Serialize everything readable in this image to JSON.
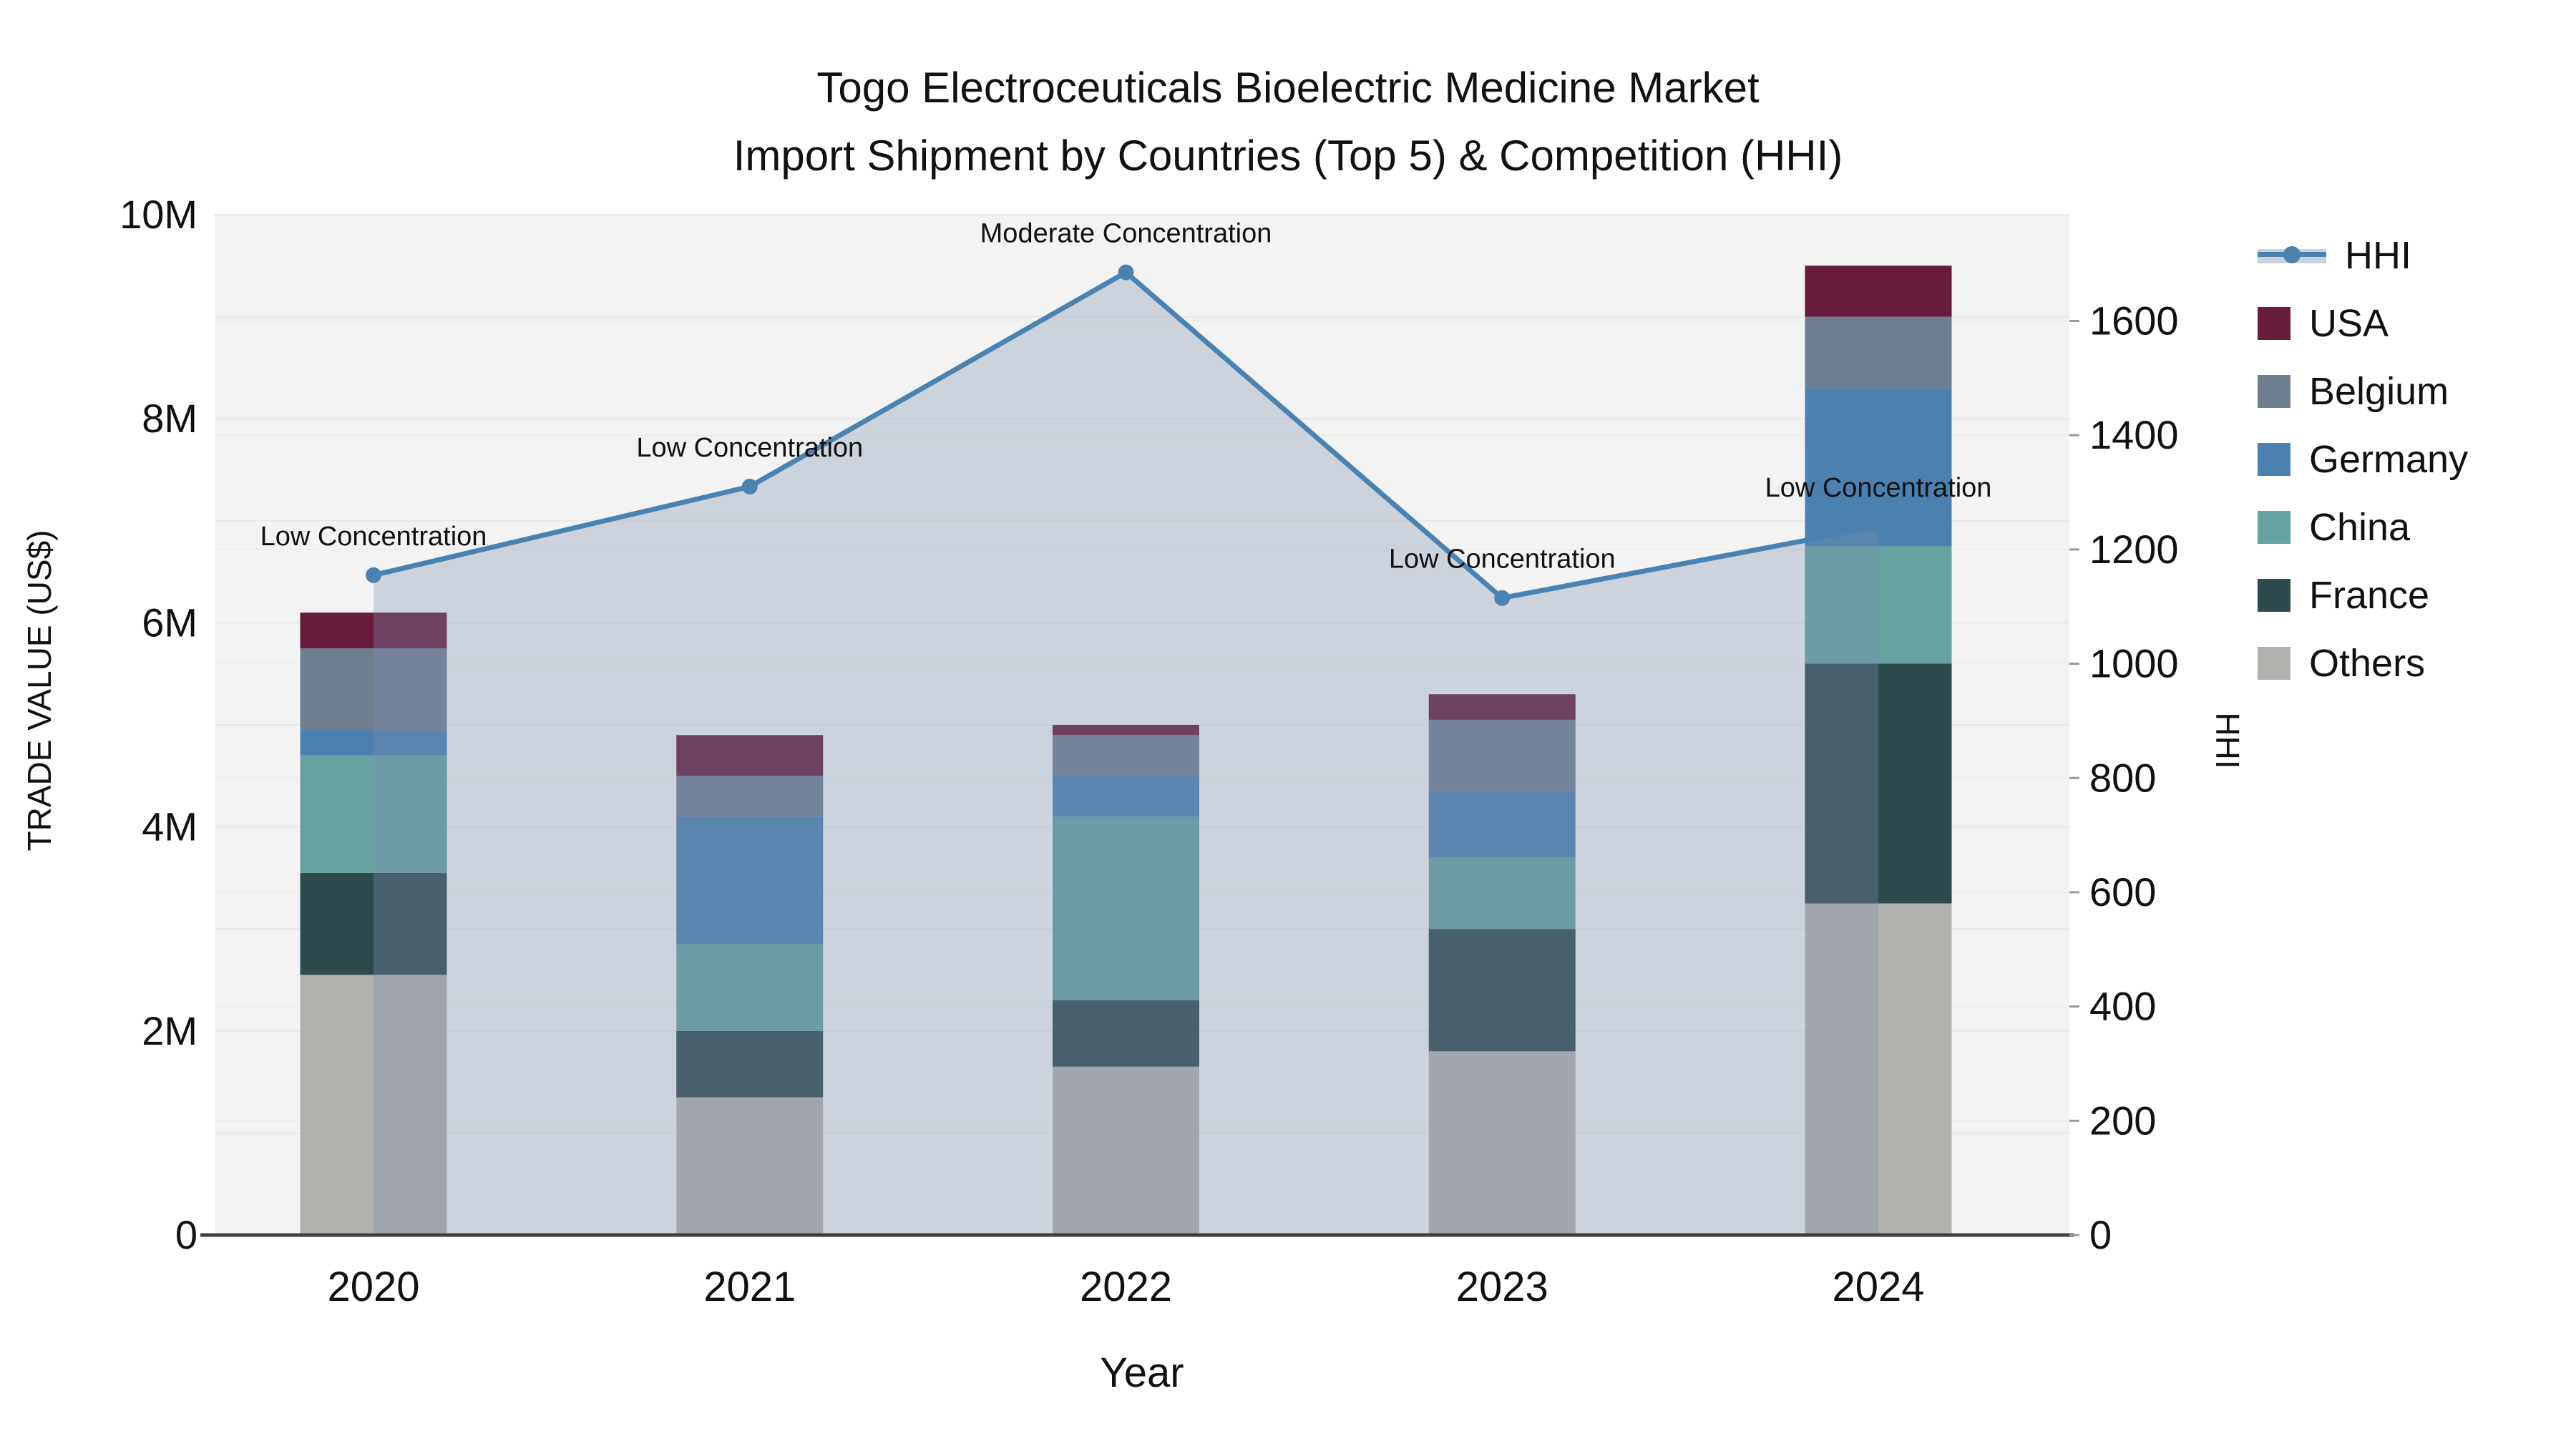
{
  "title": {
    "line1": "Togo Electroceuticals Bioelectric Medicine Market",
    "line2": "Import Shipment by Countries (Top 5) & Competition (HHI)"
  },
  "axes": {
    "x_title": "Year",
    "y_left_title": "TRADE VALUE (US$)",
    "y_right_title": "HHI",
    "y_left_tick_labels": [
      "0",
      "2M",
      "4M",
      "6M",
      "8M",
      "10M"
    ],
    "y_left_tick_values": [
      0,
      2000000,
      4000000,
      6000000,
      8000000,
      10000000
    ],
    "y_right_tick_labels": [
      "0",
      "200",
      "400",
      "600",
      "800",
      "1000",
      "1200",
      "1400",
      "1600"
    ],
    "y_right_tick_values": [
      0,
      200,
      400,
      600,
      800,
      1000,
      1200,
      1400,
      1600
    ]
  },
  "legend": {
    "items": [
      {
        "label": "HHI",
        "type": "line",
        "color": "#4a83b2"
      },
      {
        "label": "USA",
        "type": "box",
        "color": "#671c3c"
      },
      {
        "label": "Belgium",
        "type": "box",
        "color": "#6f7e8f"
      },
      {
        "label": "Germany",
        "type": "box",
        "color": "#4a81b0"
      },
      {
        "label": "China",
        "type": "box",
        "color": "#64a19f"
      },
      {
        "label": "France",
        "type": "box",
        "color": "#2d4b4c"
      },
      {
        "label": "Others",
        "type": "box",
        "color": "#b1b2ae"
      }
    ]
  },
  "chart_data": {
    "type": "bar+line",
    "title": "Togo Electroceuticals Bioelectric Medicine Market Import Shipment by Countries (Top 5) & Competition (HHI)",
    "xlabel": "Year",
    "categories": [
      "2020",
      "2021",
      "2022",
      "2023",
      "2024"
    ],
    "bar_value_unit": "US$",
    "stack_order_bottom_to_top": [
      "Others",
      "France",
      "China",
      "Germany",
      "Belgium",
      "USA"
    ],
    "series": [
      {
        "name": "Others",
        "color": "#b1b2ae",
        "values": [
          2550000,
          1350000,
          1650000,
          1800000,
          3250000
        ]
      },
      {
        "name": "France",
        "color": "#2d4b4c",
        "values": [
          1000000,
          650000,
          650000,
          1200000,
          2350000
        ]
      },
      {
        "name": "China",
        "color": "#64a19f",
        "values": [
          1150000,
          850000,
          1800000,
          700000,
          1150000
        ]
      },
      {
        "name": "Germany",
        "color": "#4a81b0",
        "values": [
          250000,
          1250000,
          400000,
          650000,
          1550000
        ]
      },
      {
        "name": "Belgium",
        "color": "#6f7e8f",
        "values": [
          800000,
          400000,
          400000,
          700000,
          700000
        ]
      },
      {
        "name": "USA",
        "color": "#671c3c",
        "values": [
          350000,
          400000,
          100000,
          250000,
          500000
        ]
      }
    ],
    "bar_totals": [
      6100000,
      4900000,
      5000000,
      5300000,
      9500000
    ],
    "line_series": {
      "name": "HHI",
      "color": "#4a83b2",
      "values": [
        1155,
        1310,
        1685,
        1115,
        1240
      ],
      "annotations": [
        "Low Concentration",
        "Low Concentration",
        "Moderate Concentration",
        "Low Concentration",
        "Low Concentration"
      ],
      "area_fill": "rgba(128,144,174,0.32)"
    },
    "y_left": {
      "min": 0,
      "max": 10000000,
      "label": "TRADE VALUE (US$)"
    },
    "y_right": {
      "min": 0,
      "max": 1786,
      "label": "HHI"
    },
    "grid": true,
    "legend_position": "right",
    "plot_bg": "#f2f3f2",
    "grid_color": "#e7e8e7",
    "axis_line_color": "#3f3f3f"
  }
}
